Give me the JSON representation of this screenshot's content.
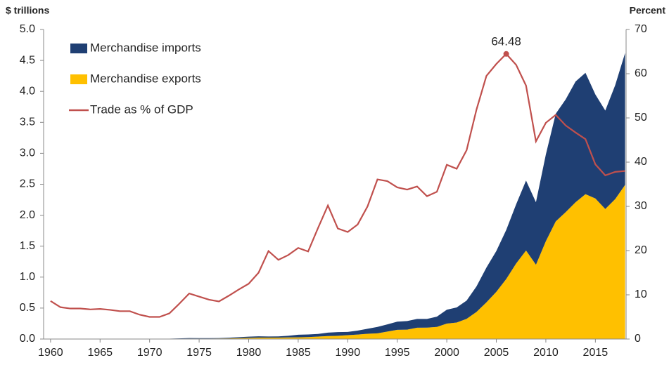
{
  "chart_data": {
    "type": "area",
    "ylabel": "$ trillions",
    "y2label": "Percent",
    "annotation": "64.48",
    "x": [
      1960,
      1961,
      1962,
      1963,
      1964,
      1965,
      1966,
      1967,
      1968,
      1969,
      1970,
      1971,
      1972,
      1973,
      1974,
      1975,
      1976,
      1977,
      1978,
      1979,
      1980,
      1981,
      1982,
      1983,
      1984,
      1985,
      1986,
      1987,
      1988,
      1989,
      1990,
      1991,
      1992,
      1993,
      1994,
      1995,
      1996,
      1997,
      1998,
      1999,
      2000,
      2001,
      2002,
      2003,
      2004,
      2005,
      2006,
      2007,
      2008,
      2009,
      2010,
      2011,
      2012,
      2013,
      2014,
      2015,
      2016,
      2017,
      2018
    ],
    "xlim": [
      1959.3,
      2018.1
    ],
    "xticks": [
      1960,
      1965,
      1970,
      1975,
      1980,
      1985,
      1990,
      1995,
      2000,
      2005,
      2010,
      2015
    ],
    "ylim": [
      0,
      5
    ],
    "yticks": [
      {
        "value": 0,
        "label": "0.0"
      },
      0.5,
      {
        "value": 1,
        "label": "1.0"
      },
      1.5,
      {
        "value": 2,
        "label": "2.0"
      },
      2.5,
      {
        "value": 3,
        "label": "3.0"
      },
      3.5,
      {
        "value": 4,
        "label": "4.0"
      },
      4.5,
      {
        "value": 5,
        "label": "5.0"
      }
    ],
    "y2lim": [
      0,
      70
    ],
    "y2ticks": [
      0,
      10,
      20,
      30,
      40,
      50,
      60,
      70
    ],
    "grid": false,
    "legend": "upper left",
    "series": [
      {
        "name": "Merchandise imports",
        "type": "area",
        "color": "#1f3f73",
        "values": [
          0.002,
          0.002,
          0.002,
          0.002,
          0.002,
          0.002,
          0.002,
          0.002,
          0.002,
          0.002,
          0.002,
          0.002,
          0.003,
          0.005,
          0.008,
          0.007,
          0.007,
          0.007,
          0.011,
          0.016,
          0.02,
          0.022,
          0.019,
          0.021,
          0.027,
          0.042,
          0.043,
          0.043,
          0.055,
          0.059,
          0.053,
          0.064,
          0.081,
          0.104,
          0.116,
          0.132,
          0.139,
          0.142,
          0.14,
          0.166,
          0.225,
          0.244,
          0.295,
          0.413,
          0.561,
          0.66,
          0.792,
          0.956,
          1.13,
          1.01,
          1.4,
          1.74,
          1.82,
          1.95,
          1.96,
          1.68,
          1.59,
          1.84,
          2.13
        ]
      },
      {
        "name": "Merchandise exports",
        "type": "area",
        "color": "#ffc000",
        "values": [
          0.002,
          0.002,
          0.002,
          0.002,
          0.002,
          0.002,
          0.002,
          0.002,
          0.002,
          0.002,
          0.002,
          0.003,
          0.003,
          0.005,
          0.007,
          0.007,
          0.007,
          0.008,
          0.01,
          0.014,
          0.018,
          0.022,
          0.022,
          0.022,
          0.026,
          0.027,
          0.031,
          0.039,
          0.048,
          0.053,
          0.062,
          0.072,
          0.085,
          0.092,
          0.121,
          0.149,
          0.151,
          0.183,
          0.184,
          0.195,
          0.249,
          0.266,
          0.326,
          0.438,
          0.593,
          0.762,
          0.969,
          1.22,
          1.43,
          1.2,
          1.58,
          1.9,
          2.05,
          2.21,
          2.34,
          2.27,
          2.1,
          2.26,
          2.49
        ]
      },
      {
        "name": "Trade as % of GDP",
        "type": "line",
        "axis": "y2",
        "color": "#c0504d",
        "values": [
          8.6,
          7.2,
          6.9,
          6.9,
          6.7,
          6.8,
          6.6,
          6.3,
          6.3,
          5.5,
          5.0,
          5.0,
          5.8,
          8.0,
          10.3,
          9.6,
          8.9,
          8.5,
          9.8,
          11.2,
          12.5,
          15.0,
          19.9,
          17.9,
          19.0,
          20.6,
          19.8,
          25.1,
          30.2,
          25.0,
          24.2,
          25.9,
          30.0,
          36.1,
          35.7,
          34.3,
          33.8,
          34.5,
          32.3,
          33.3,
          39.4,
          38.5,
          42.7,
          51.9,
          59.5,
          62.2,
          64.48,
          62.0,
          57.3,
          44.7,
          48.9,
          50.7,
          48.3,
          46.7,
          45.2,
          39.5,
          37.0,
          37.8,
          38.0
        ]
      }
    ]
  }
}
